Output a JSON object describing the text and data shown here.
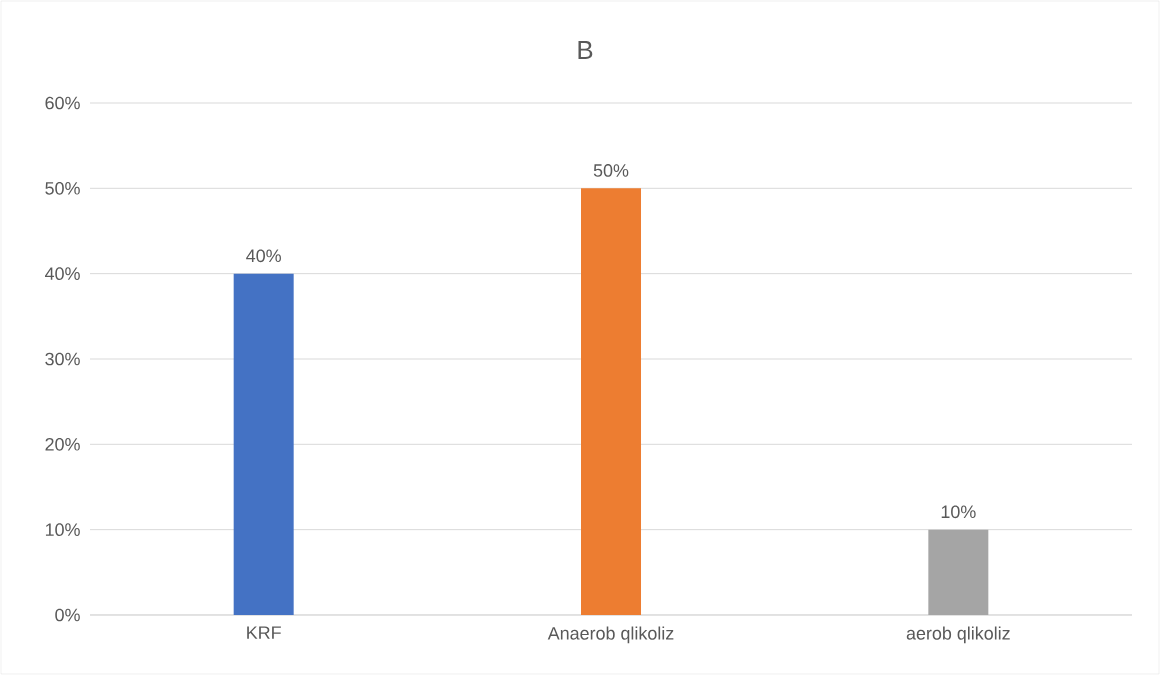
{
  "chart_data": {
    "type": "bar",
    "title": "B",
    "categories": [
      "KRF",
      "Anaerob qlikoliz",
      "aerob qlikoliz"
    ],
    "values": [
      40,
      50,
      10
    ],
    "colors": [
      "#4472c4",
      "#ed7d31",
      "#a5a5a5"
    ],
    "value_labels": [
      "40%",
      "50%",
      "10%"
    ],
    "ylim": [
      0,
      60
    ],
    "yticks": [
      {
        "value": 0,
        "label": "0%"
      },
      {
        "value": 10,
        "label": "10%"
      },
      {
        "value": 20,
        "label": "20%"
      },
      {
        "value": 30,
        "label": "30%"
      },
      {
        "value": 40,
        "label": "40%"
      },
      {
        "value": 50,
        "label": "50%"
      },
      {
        "value": 60,
        "label": "60%"
      }
    ],
    "grid": "y"
  }
}
